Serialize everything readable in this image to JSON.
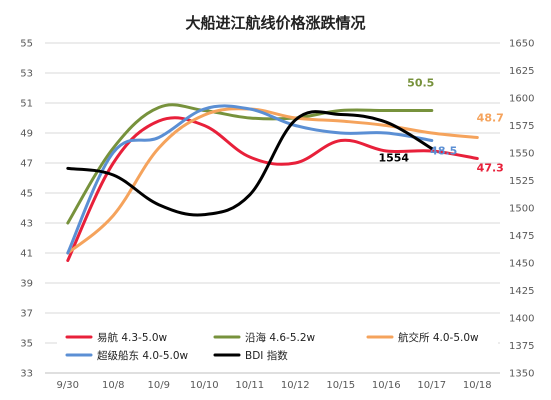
{
  "chart_data": {
    "type": "line",
    "title": "大船进江航线价格涨跌情况",
    "categories": [
      "9/30",
      "10/8",
      "10/9",
      "10/10",
      "10/11",
      "10/12",
      "10/15",
      "10/16",
      "10/17",
      "10/18"
    ],
    "left_axis": {
      "ylim": [
        33,
        55
      ],
      "ticks": [
        "33",
        "35",
        "37",
        "39",
        "41",
        "43",
        "45",
        "47",
        "49",
        "51",
        "53",
        "55"
      ]
    },
    "right_axis": {
      "ylim": [
        1350,
        1650
      ],
      "ticks": [
        "1350",
        "1375",
        "1400",
        "1425",
        "1450",
        "1475",
        "1500",
        "1525",
        "1550",
        "1575",
        "1600",
        "1625",
        "1650"
      ]
    },
    "grid": true,
    "legend_position": "bottom-inside",
    "series": [
      {
        "name": "易航 4.3-5.0w",
        "axis": "left",
        "color": "#e8203a",
        "values": [
          40.5,
          47.0,
          49.8,
          49.5,
          47.4,
          47.0,
          48.5,
          47.8,
          47.8,
          47.3
        ]
      },
      {
        "name": "沿海 4.6-5.2w",
        "axis": "left",
        "color": "#77923c",
        "values": [
          43.0,
          48.0,
          50.7,
          50.5,
          50.0,
          50.0,
          50.5,
          50.5,
          50.5,
          null
        ]
      },
      {
        "name": "航交所 4.0-5.0w",
        "axis": "left",
        "color": "#f5a35c",
        "values": [
          41.0,
          43.5,
          48.0,
          50.2,
          50.6,
          50.0,
          49.8,
          49.5,
          49.0,
          48.7
        ]
      },
      {
        "name": "超级船东 4.0-5.0w",
        "axis": "left",
        "color": "#5b8fd4",
        "values": [
          41.0,
          47.7,
          48.7,
          50.6,
          50.6,
          49.5,
          49.0,
          49.0,
          48.5,
          null
        ]
      },
      {
        "name": "BDI 指数",
        "axis": "right",
        "color": "#000000",
        "values": [
          1536,
          1530,
          1503,
          1494,
          1512,
          1580,
          1585,
          1578,
          1554,
          null
        ]
      }
    ],
    "annotations": [
      {
        "text": "50.5",
        "series": 1,
        "color": "#77923c"
      },
      {
        "text": "48.7",
        "series": 2,
        "color": "#f5a35c"
      },
      {
        "text": "48.5",
        "series": 3,
        "color": "#5b8fd4"
      },
      {
        "text": "47.3",
        "series": 0,
        "color": "#e8203a"
      },
      {
        "text": "1554",
        "series": 4,
        "color": "#000000"
      }
    ]
  }
}
